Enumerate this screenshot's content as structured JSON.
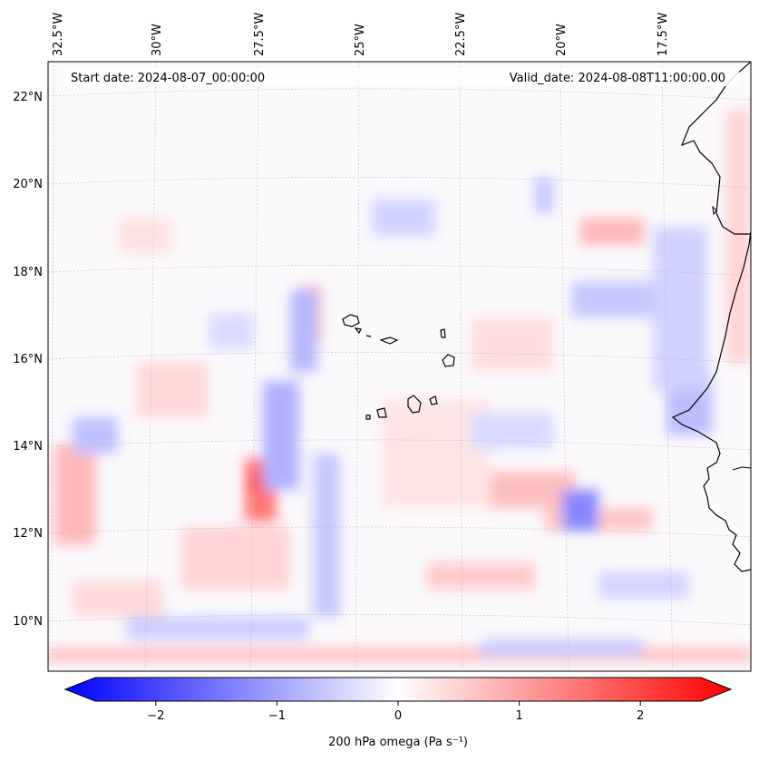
{
  "header": {
    "start_date": "Start date: 2024-08-07_00:00:00",
    "valid_date": "Valid_date: 2024-08-08T11:00:00.00"
  },
  "longitude_labels": [
    "32.5°W",
    "30°W",
    "27.5°W",
    "25°W",
    "22.5°W",
    "20°W",
    "17.5°W"
  ],
  "latitude_labels": [
    "22°N",
    "20°N",
    "18°N",
    "16°N",
    "14°N",
    "12°N",
    "10°N"
  ],
  "colorbar": {
    "label": "200 hPa omega (Pa s⁻¹)",
    "ticks": [
      {
        "value": -2,
        "label": "−2"
      },
      {
        "value": -1,
        "label": "−1"
      },
      {
        "value": 0,
        "label": "0"
      },
      {
        "value": 1,
        "label": "1"
      },
      {
        "value": 2,
        "label": "2"
      }
    ],
    "range": [
      -2.5,
      2.5
    ],
    "colors": {
      "negative": "#0000ff",
      "zero": "#ffffff",
      "positive": "#ff0000"
    }
  },
  "colors": {
    "coastline": "#000000",
    "gridline": "#bbbbbb"
  }
}
